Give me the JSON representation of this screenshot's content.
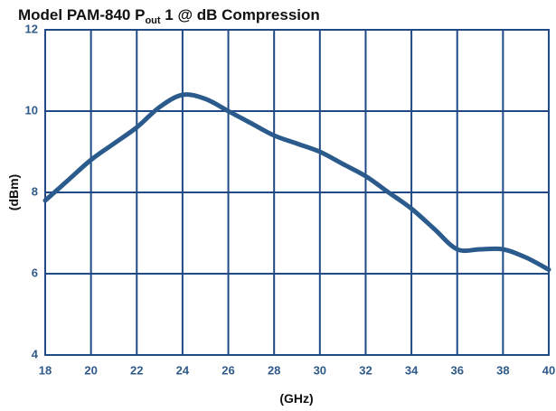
{
  "chart_data": {
    "type": "line",
    "title": [
      "Model PAM-840 P",
      "out",
      " 1 @ dB Compression"
    ],
    "x_label": "(GHz)",
    "y_label": "(dBm)",
    "x": [
      18,
      19,
      20,
      21,
      22,
      23,
      24,
      25,
      26,
      27,
      28,
      29,
      30,
      31,
      32,
      33,
      34,
      35,
      36,
      37,
      38,
      39,
      40
    ],
    "series": [
      {
        "name": "Pout",
        "color": "#2b5a8c",
        "values": [
          7.8,
          8.3,
          8.8,
          9.2,
          9.6,
          10.1,
          10.4,
          10.3,
          10.0,
          9.7,
          9.4,
          9.2,
          9.0,
          8.7,
          8.4,
          8.0,
          7.6,
          7.1,
          6.6,
          6.6,
          6.6,
          6.4,
          6.1
        ]
      }
    ],
    "xlim": [
      18,
      40
    ],
    "xticks": [
      18,
      20,
      22,
      24,
      26,
      28,
      30,
      32,
      34,
      36,
      38,
      40
    ],
    "ylim": [
      4,
      12
    ],
    "yticks": [
      4,
      6,
      8,
      10,
      12
    ],
    "grid": true,
    "grid_color": "#1f4a86"
  }
}
